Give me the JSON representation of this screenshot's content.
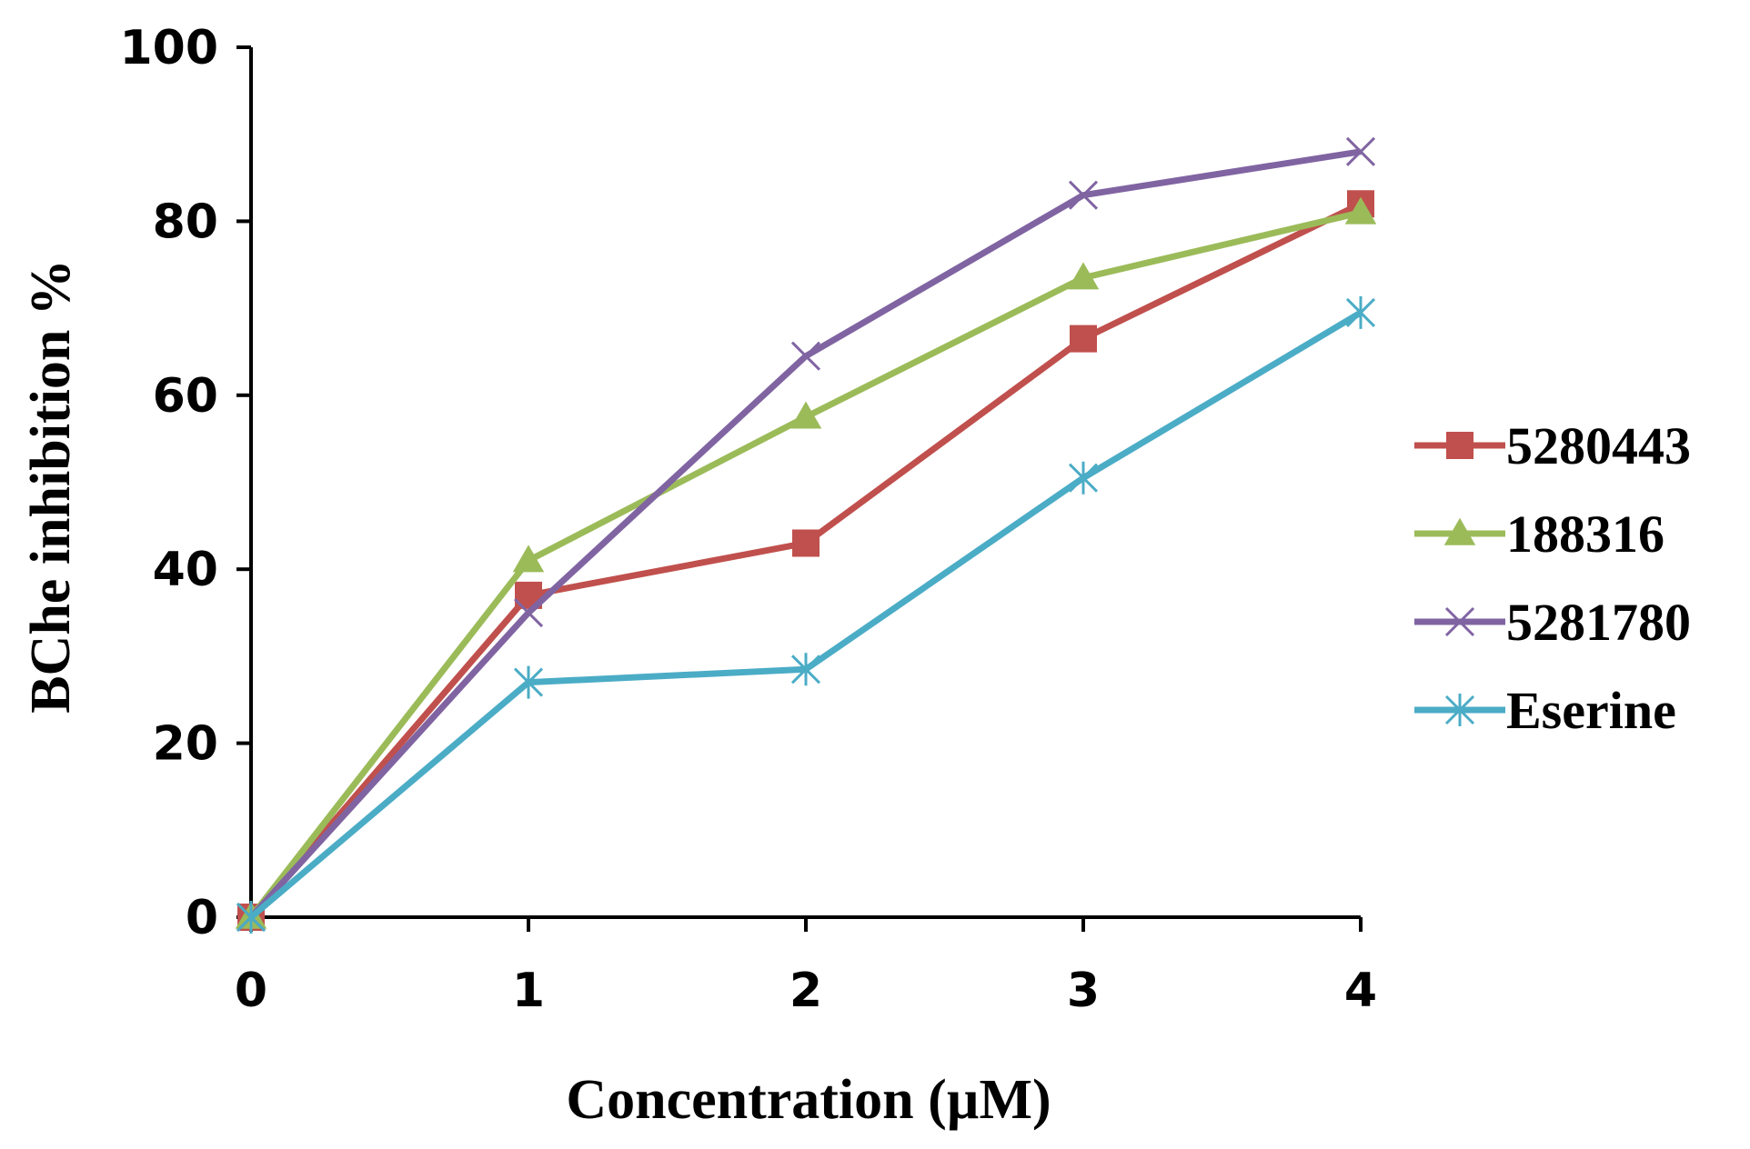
{
  "chart_data": {
    "type": "line",
    "xlabel": "Concentration (µM)",
    "ylabel": "BChe inhibition %",
    "x": [
      0,
      1,
      2,
      3,
      4
    ],
    "xticks": [
      "0",
      "1",
      "2",
      "3",
      "4"
    ],
    "yticks": [
      "0",
      "20",
      "40",
      "60",
      "80",
      "100"
    ],
    "xlim": [
      0,
      4
    ],
    "ylim": [
      0,
      100
    ],
    "grid": false,
    "legend_position": "right",
    "series": [
      {
        "name": "5280443",
        "values": [
          0,
          37,
          43,
          66.5,
          82
        ],
        "color": "#C0504D",
        "marker": "square"
      },
      {
        "name": "188316",
        "values": [
          0,
          41,
          57.5,
          73.5,
          81
        ],
        "color": "#9BBB59",
        "marker": "triangle"
      },
      {
        "name": "5281780",
        "values": [
          0,
          35,
          64.5,
          83,
          88
        ],
        "color": "#8064A2",
        "marker": "x"
      },
      {
        "name": "Eserine",
        "values": [
          0,
          27,
          28.5,
          50.5,
          69.5
        ],
        "color": "#4BACC6",
        "marker": "star"
      }
    ]
  }
}
